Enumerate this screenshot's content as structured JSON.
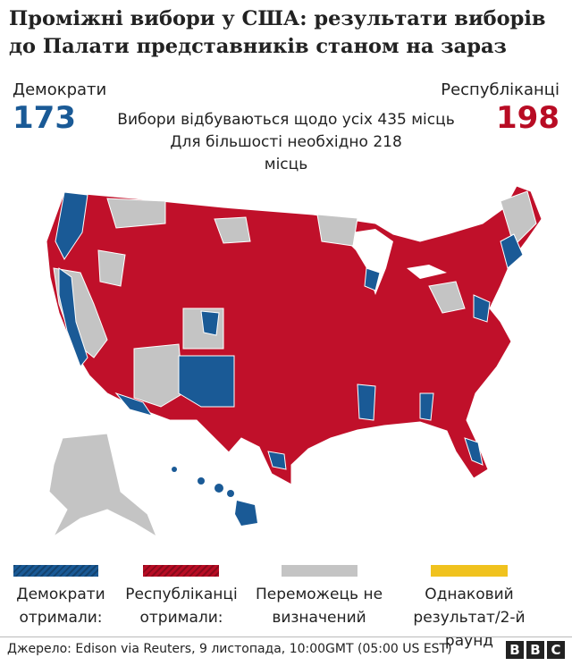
{
  "header": {
    "title_lines": [
      "Проміжні вибори у США: результати виборів",
      "до Палати представників станом на зараз"
    ]
  },
  "summary": {
    "democrats": {
      "label": "Демократи",
      "seats": "173",
      "color": "#1a5a96"
    },
    "republicans": {
      "label": "Республіканці",
      "seats": "198",
      "color": "#b80c24"
    },
    "note_lines": [
      "Вибори відбуваються щодо усіх 435 місць",
      "Для більшості необхідно 218",
      "місць"
    ]
  },
  "legend": [
    {
      "label_lines": [
        "Демократи",
        "отримали:"
      ],
      "color": "#1a5a96"
    },
    {
      "label_lines": [
        "Республіканці",
        "отримали:"
      ],
      "color": "#b80c24"
    },
    {
      "label_lines": [
        "Переможець не",
        "визначений"
      ],
      "color": "#c4c4c4"
    },
    {
      "label_lines": [
        "Однаковий",
        "результат/2-й раунд"
      ],
      "color": "#f0c21e"
    }
  ],
  "footer": {
    "source": "Джерело: Edison via Reuters, 9 листопада, 10:00GMT (05:00 US EST)",
    "logo": [
      "B",
      "B",
      "C"
    ]
  }
}
